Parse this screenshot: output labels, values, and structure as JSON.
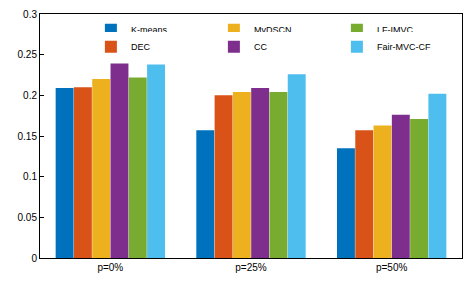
{
  "chart_data": {
    "type": "bar",
    "categories": [
      "p=0%",
      "p=25%",
      "p=50%"
    ],
    "series": [
      {
        "name": "K-means",
        "color": "#0072BD",
        "values": [
          0.209,
          0.157,
          0.135
        ]
      },
      {
        "name": "DEC",
        "color": "#D95319",
        "values": [
          0.21,
          0.2,
          0.157
        ]
      },
      {
        "name": "MvDSCN",
        "color": "#EDB120",
        "values": [
          0.22,
          0.204,
          0.163
        ]
      },
      {
        "name": "CC",
        "color": "#7E2F8E",
        "values": [
          0.239,
          0.209,
          0.176
        ]
      },
      {
        "name": "LF-IMVC",
        "color": "#77AC30",
        "values": [
          0.222,
          0.204,
          0.171
        ]
      },
      {
        "name": "Fair-MVC-CF",
        "color": "#4DBEEE",
        "values": [
          0.238,
          0.226,
          0.202
        ]
      }
    ],
    "ylim": [
      0,
      0.3
    ],
    "yticks": [
      0,
      0.05,
      0.1,
      0.15,
      0.2,
      0.25,
      0.3
    ],
    "grid": false,
    "legend": "upper right"
  }
}
